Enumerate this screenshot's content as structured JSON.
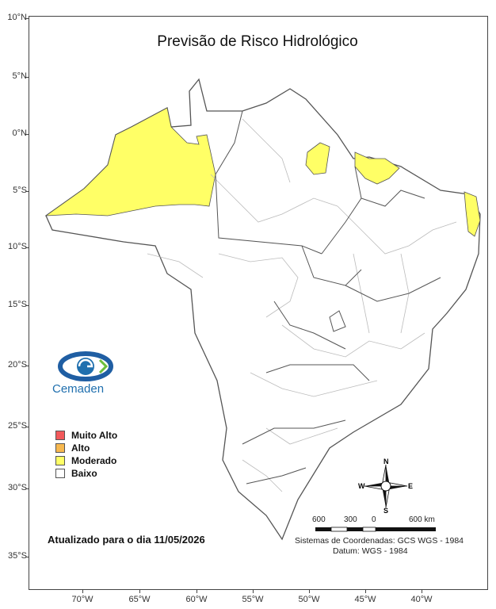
{
  "title": "Previsão de Risco Hidrológico",
  "lat_labels": [
    "10°N",
    "5°N",
    "0°N",
    "5°S",
    "10°S",
    "15°S",
    "20°S",
    "25°S",
    "30°S",
    "35°S"
  ],
  "lon_labels": [
    "70°W",
    "65°W",
    "60°W",
    "55°W",
    "50°W",
    "45°W",
    "40°W"
  ],
  "logo": {
    "text": "Cemaden"
  },
  "legend": {
    "items": [
      {
        "label": "Muito Alto",
        "color": "#f2595b"
      },
      {
        "label": "Alto",
        "color": "#f7b84f"
      },
      {
        "label": "Moderado",
        "color": "#ffff66"
      },
      {
        "label": "Baixo",
        "color": "#ffffff"
      }
    ]
  },
  "updated": "Atualizado para o dia 11/05/2026",
  "compass": {
    "n": "N",
    "s": "S",
    "e": "E",
    "w": "W"
  },
  "scale": {
    "labels": [
      "600",
      "300",
      "0",
      "600 km"
    ]
  },
  "crs": {
    "line1": "Sistemas de Coordenadas: GCS WGS - 1984",
    "line2": "Datum: WGS - 1984"
  },
  "colors": {
    "border_state": "#555555",
    "border_basin": "#bbbbbb",
    "moderado": "#ffff66"
  }
}
